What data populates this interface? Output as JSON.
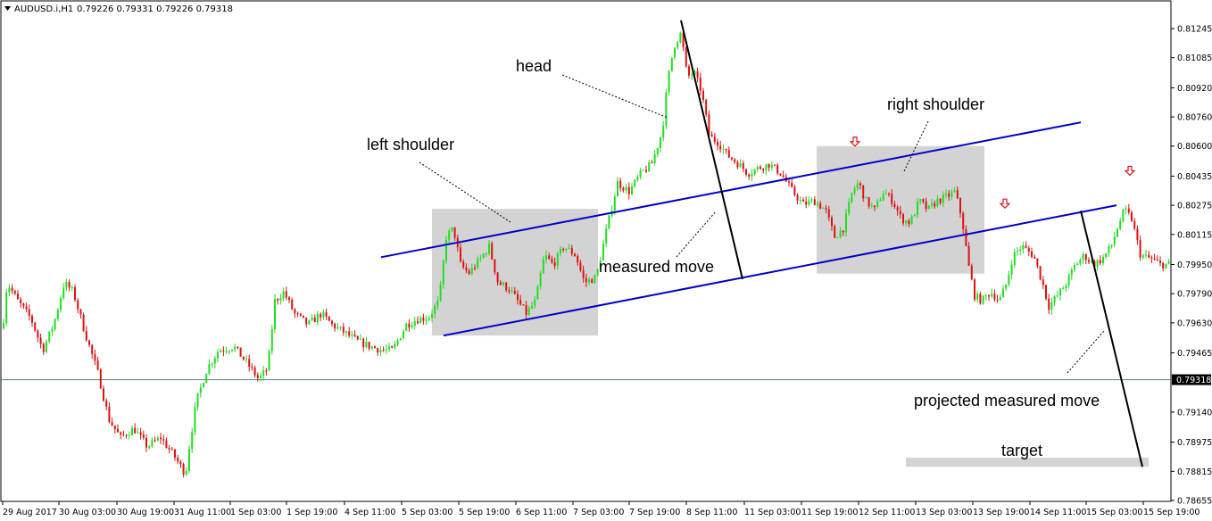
{
  "header": {
    "symbol": "AUDUSD.i,H1",
    "ohlc": "0.79226 0.79331 0.79226 0.79318"
  },
  "colors": {
    "bull": "#22dd22",
    "bear": "#dd1111",
    "trendline": "#0000cc",
    "measured_line": "#000000",
    "box": "#d3d3d3",
    "current_price_line": "#5f7f8f",
    "price_tag_bg": "#000000",
    "arrow": "#dd1111"
  },
  "annotations": {
    "head": "head",
    "left_shoulder": "left shoulder",
    "right_shoulder": "right shoulder",
    "measured_move": "measured move",
    "projected_measured_move": "projected measured move",
    "target": "target"
  },
  "chart_data": {
    "type": "candlestick",
    "symbol": "AUDUSD.i",
    "timeframe": "H1",
    "ylim": [
      0.7863,
      0.8132
    ],
    "y_ticks": [
      "0.81245",
      "0.81085",
      "0.80920",
      "0.80760",
      "0.80600",
      "0.80435",
      "0.80275",
      "0.80115",
      "0.79950",
      "0.79790",
      "0.79630",
      "0.79465",
      "0.79140",
      "0.78975",
      "0.78815",
      "0.78655"
    ],
    "x_ticks": [
      "29 Aug 2017",
      "30 Aug 03:00",
      "30 Aug 19:00",
      "31 Aug 11:00",
      "1 Sep 03:00",
      "1 Sep 19:00",
      "4 Sep 11:00",
      "5 Sep 03:00",
      "5 Sep 19:00",
      "6 Sep 11:00",
      "7 Sep 03:00",
      "7 Sep 19:00",
      "8 Sep 11:00",
      "11 Sep 03:00",
      "11 Sep 19:00",
      "12 Sep 11:00",
      "13 Sep 03:00",
      "13 Sep 19:00",
      "14 Sep 11:00",
      "15 Sep 03:00",
      "15 Sep 19:00"
    ],
    "current_price": "0.79318",
    "price_path": [
      [
        0,
        0.7945
      ],
      [
        8,
        0.7985
      ],
      [
        20,
        0.7975
      ],
      [
        35,
        0.7965
      ],
      [
        48,
        0.7948
      ],
      [
        60,
        0.7962
      ],
      [
        72,
        0.7985
      ],
      [
        82,
        0.798
      ],
      [
        95,
        0.7958
      ],
      [
        110,
        0.7935
      ],
      [
        122,
        0.791
      ],
      [
        135,
        0.79
      ],
      [
        150,
        0.7905
      ],
      [
        165,
        0.7895
      ],
      [
        180,
        0.79
      ],
      [
        195,
        0.789
      ],
      [
        208,
        0.788
      ],
      [
        212,
        0.7895
      ],
      [
        220,
        0.792
      ],
      [
        232,
        0.7938
      ],
      [
        245,
        0.7948
      ],
      [
        262,
        0.795
      ],
      [
        278,
        0.794
      ],
      [
        290,
        0.7932
      ],
      [
        300,
        0.7938
      ],
      [
        308,
        0.7975
      ],
      [
        318,
        0.798
      ],
      [
        330,
        0.7968
      ],
      [
        345,
        0.7962
      ],
      [
        360,
        0.7968
      ],
      [
        372,
        0.7962
      ],
      [
        385,
        0.7958
      ],
      [
        400,
        0.7953
      ],
      [
        415,
        0.795
      ],
      [
        428,
        0.7948
      ],
      [
        440,
        0.7948
      ],
      [
        455,
        0.7962
      ],
      [
        468,
        0.7965
      ],
      [
        480,
        0.7966
      ],
      [
        492,
        0.7975
      ],
      [
        500,
        0.801
      ],
      [
        508,
        0.8015
      ],
      [
        516,
        0.7995
      ],
      [
        525,
        0.799
      ],
      [
        538,
        0.7998
      ],
      [
        548,
        0.8005
      ],
      [
        558,
        0.7985
      ],
      [
        570,
        0.7982
      ],
      [
        580,
        0.7975
      ],
      [
        590,
        0.7968
      ],
      [
        600,
        0.7975
      ],
      [
        610,
        0.8
      ],
      [
        620,
        0.7995
      ],
      [
        632,
        0.8005
      ],
      [
        645,
        0.8
      ],
      [
        655,
        0.7985
      ],
      [
        668,
        0.7988
      ],
      [
        680,
        0.8015
      ],
      [
        692,
        0.804
      ],
      [
        705,
        0.8035
      ],
      [
        718,
        0.8045
      ],
      [
        730,
        0.805
      ],
      [
        742,
        0.8068
      ],
      [
        748,
        0.8095
      ],
      [
        755,
        0.8115
      ],
      [
        763,
        0.8122
      ],
      [
        770,
        0.8098
      ],
      [
        778,
        0.81
      ],
      [
        786,
        0.809
      ],
      [
        795,
        0.8065
      ],
      [
        805,
        0.8062
      ],
      [
        815,
        0.8055
      ],
      [
        828,
        0.805
      ],
      [
        838,
        0.8045
      ],
      [
        850,
        0.8048
      ],
      [
        862,
        0.805
      ],
      [
        875,
        0.8045
      ],
      [
        888,
        0.8035
      ],
      [
        900,
        0.8028
      ],
      [
        912,
        0.803
      ],
      [
        925,
        0.8025
      ],
      [
        935,
        0.801
      ],
      [
        945,
        0.8015
      ],
      [
        955,
        0.8035
      ],
      [
        962,
        0.804
      ],
      [
        970,
        0.803
      ],
      [
        980,
        0.8025
      ],
      [
        990,
        0.8035
      ],
      [
        1000,
        0.803
      ],
      [
        1010,
        0.802
      ],
      [
        1020,
        0.8018
      ],
      [
        1030,
        0.803
      ],
      [
        1040,
        0.8025
      ],
      [
        1050,
        0.803
      ],
      [
        1060,
        0.8032
      ],
      [
        1070,
        0.8035
      ],
      [
        1078,
        0.802
      ],
      [
        1085,
        0.7995
      ],
      [
        1092,
        0.7978
      ],
      [
        1100,
        0.7975
      ],
      [
        1110,
        0.798
      ],
      [
        1120,
        0.7975
      ],
      [
        1128,
        0.7985
      ],
      [
        1135,
        0.8
      ],
      [
        1145,
        0.8005
      ],
      [
        1158,
        0.8
      ],
      [
        1168,
        0.7985
      ],
      [
        1175,
        0.7972
      ],
      [
        1185,
        0.7978
      ],
      [
        1195,
        0.7985
      ],
      [
        1205,
        0.7995
      ],
      [
        1215,
        0.8
      ],
      [
        1225,
        0.7995
      ],
      [
        1235,
        0.7998
      ],
      [
        1245,
        0.8005
      ],
      [
        1252,
        0.8015
      ],
      [
        1260,
        0.8025
      ],
      [
        1268,
        0.802
      ],
      [
        1278,
        0.8
      ],
      [
        1290,
        0.7998
      ],
      [
        1300,
        0.7995
      ],
      [
        1312,
        0.7995
      ]
    ],
    "upper_trendline": [
      [
        427,
        0.7999
      ],
      [
        1211,
        0.8073
      ]
    ],
    "lower_trendline": [
      [
        497,
        0.7956
      ],
      [
        1251,
        0.80275
      ]
    ],
    "measured_move_line": [
      [
        763,
        0.8129
      ],
      [
        832,
        0.7987
      ]
    ],
    "projected_move_line": [
      [
        1211,
        0.80245
      ],
      [
        1280,
        0.7884
      ]
    ],
    "boxes": [
      {
        "x1": 484,
        "x2": 670,
        "y_top": 0.80255,
        "y_bottom": 0.7956
      },
      {
        "x1": 915,
        "x2": 1103,
        "y_top": 0.806,
        "y_bottom": 0.799
      },
      {
        "x1": 1015,
        "x2": 1287,
        "y_top": 0.7889,
        "y_bottom": 0.7884
      }
    ],
    "arrows_x": [
      958,
      1126,
      1266
    ],
    "arrows_y": [
      0.806,
      0.8026,
      0.8044
    ]
  }
}
